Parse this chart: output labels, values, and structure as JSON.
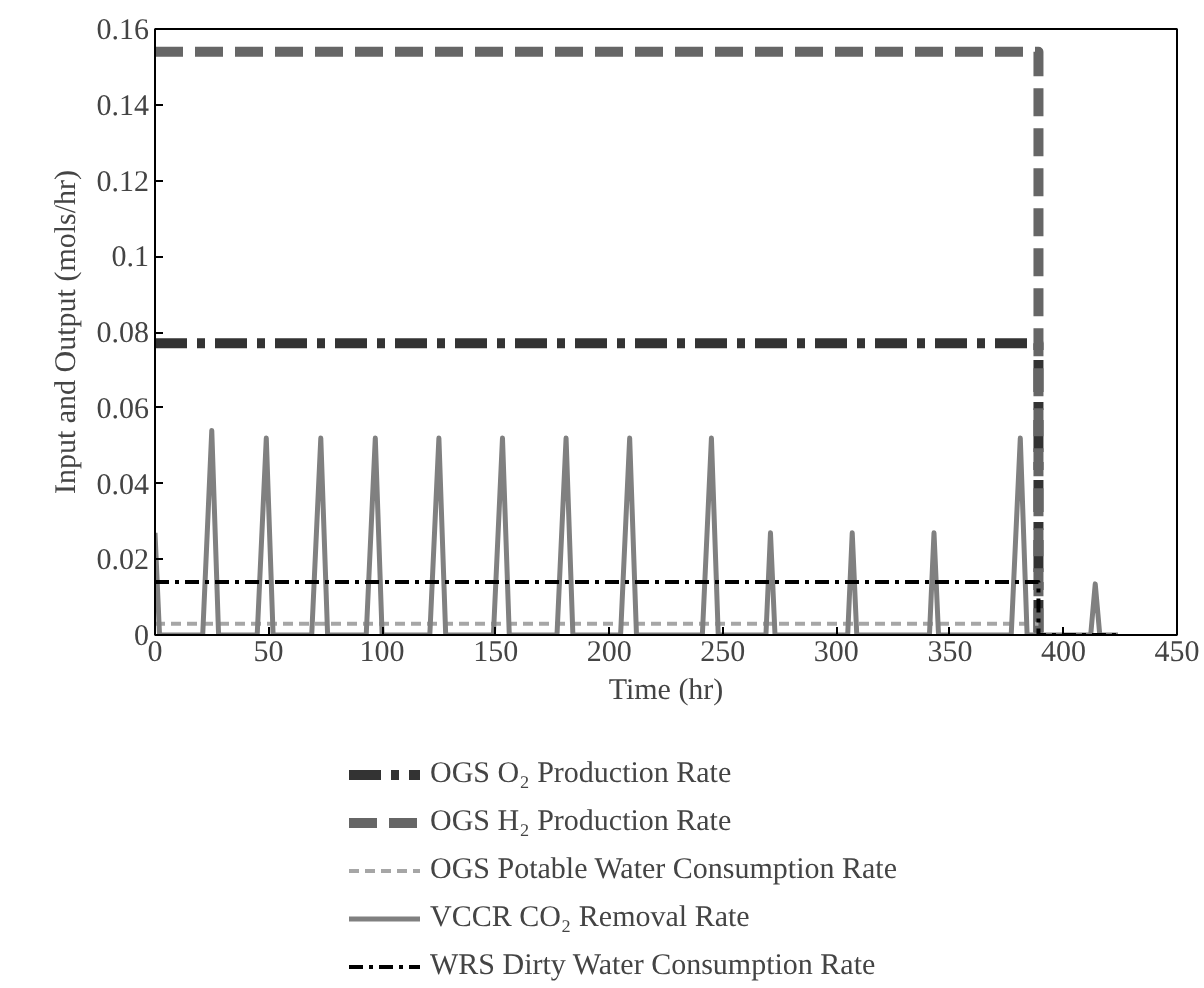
{
  "chart_data": {
    "type": "line",
    "xlabel": "Time (hr)",
    "ylabel": "Input and Output (mols/hr)",
    "xlim": [
      0,
      450
    ],
    "ylim": [
      0,
      0.16
    ],
    "xticks": [
      0,
      50,
      100,
      150,
      200,
      250,
      300,
      350,
      400,
      450
    ],
    "yticks": [
      0,
      0.02,
      0.04,
      0.06,
      0.08,
      0.1,
      0.12,
      0.14,
      0.16
    ],
    "grid": false,
    "legend": "bottom",
    "series": [
      {
        "name": "OGS O₂ Production Rate",
        "color": "#333333",
        "line_style": "dashdot",
        "x": [
          0,
          389,
          389
        ],
        "values": [
          0.077,
          0.077,
          0
        ]
      },
      {
        "name": "OGS H₂ Production Rate",
        "color": "#666666",
        "line_style": "dashed",
        "x": [
          0,
          389,
          389
        ],
        "values": [
          0.154,
          0.154,
          0
        ]
      },
      {
        "name": "OGS Potable Water Consumption Rate",
        "color": "#a6a6a6",
        "line_style": "dashed",
        "x": [
          0,
          389
        ],
        "values": [
          0.003,
          0.003
        ]
      },
      {
        "name": "VCCR CO₂ Removal Rate",
        "color": "#808080",
        "line_style": "solid",
        "x": [
          0,
          2,
          21,
          25,
          28,
          45,
          49,
          52,
          69,
          73,
          76,
          93,
          97,
          100,
          121,
          125,
          128,
          149,
          153,
          156,
          177,
          181,
          184,
          205,
          209,
          212,
          241,
          245,
          248,
          269,
          271,
          273,
          305,
          307,
          309,
          341,
          343,
          345,
          377,
          381,
          384,
          412,
          414,
          416,
          424
        ],
        "values": [
          0.027,
          0,
          0,
          0.054,
          0,
          0,
          0.052,
          0,
          0,
          0.052,
          0,
          0,
          0.052,
          0,
          0,
          0.052,
          0,
          0,
          0.052,
          0,
          0,
          0.052,
          0,
          0,
          0.052,
          0,
          0,
          0.052,
          0,
          0,
          0.027,
          0,
          0,
          0.027,
          0,
          0,
          0.027,
          0,
          0,
          0.052,
          0,
          0,
          0.0135,
          0,
          0
        ]
      },
      {
        "name": "WRS Dirty Water Consumption Rate",
        "color": "#000000",
        "line_style": "dashdot",
        "x": [
          0,
          389,
          389,
          424
        ],
        "values": [
          0.014,
          0.014,
          0,
          0
        ]
      }
    ]
  }
}
